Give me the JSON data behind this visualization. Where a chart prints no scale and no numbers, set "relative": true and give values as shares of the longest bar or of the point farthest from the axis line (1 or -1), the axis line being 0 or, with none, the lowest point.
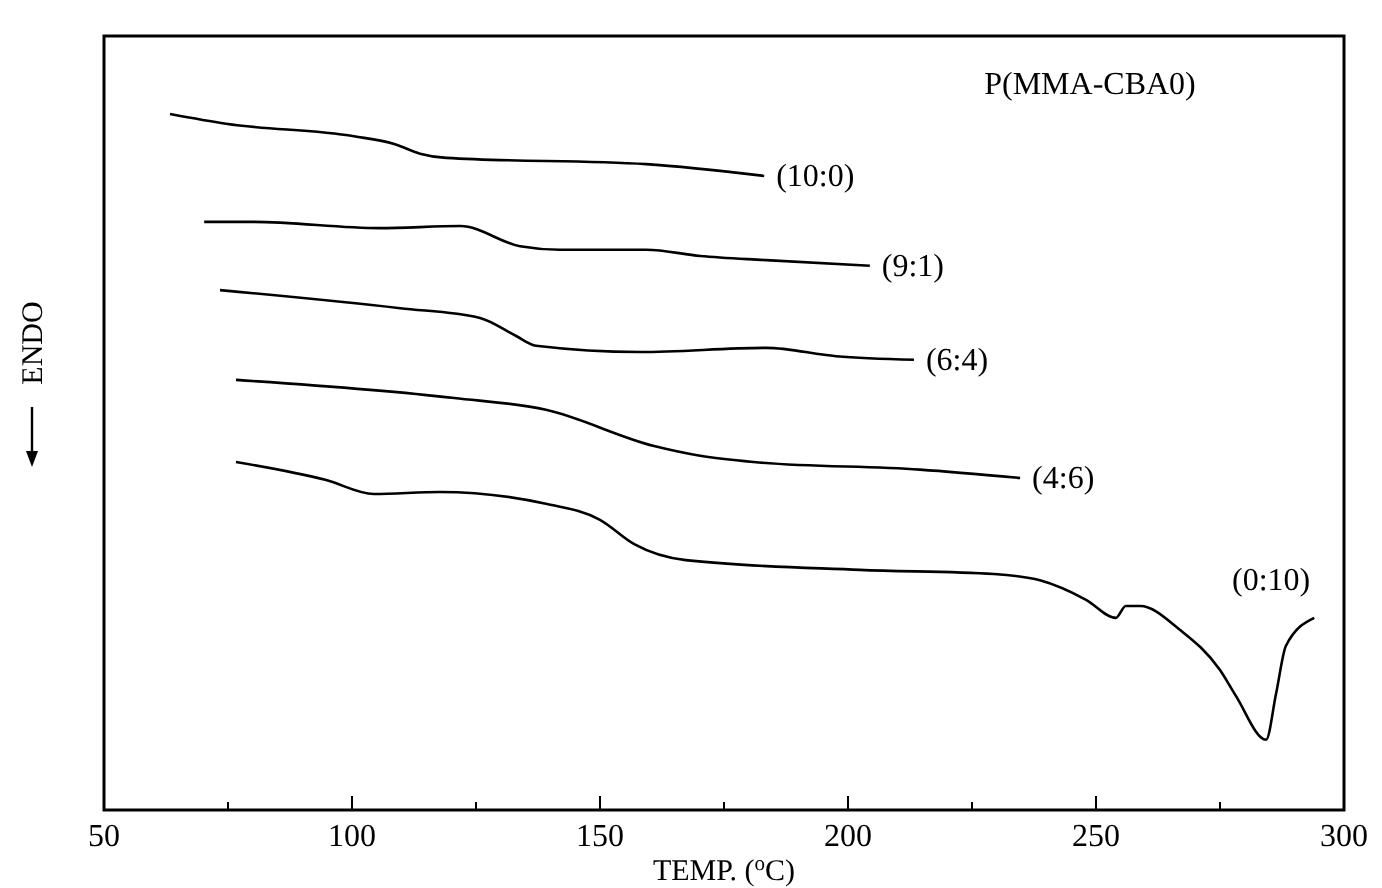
{
  "chart_data": {
    "type": "line",
    "relative": true,
    "xlabel": "TEMP. ($^{o}$C)",
    "ylabel": "ENDO",
    "legend_title": "P(MMA-CBA0)",
    "xlim": [
      50,
      300
    ],
    "xticks": [
      50,
      {
        "value": 75,
        "label": null
      },
      100,
      {
        "value": 125,
        "label": null
      },
      150,
      {
        "value": 175,
        "label": null
      },
      200,
      {
        "value": 225,
        "label": null
      },
      250,
      {
        "value": 275,
        "label": null
      },
      300
    ],
    "line_style": "solid",
    "marker": "none",
    "series": [
      {
        "name": "(10:0)",
        "color": "#000000",
        "x": [
          63.3,
          74.6,
          100.4,
          108.5,
          113.7,
          119.0,
          159.3,
          183.1
        ],
        "values": [
          1.0,
          0.986,
          0.968,
          0.957,
          0.943,
          0.937,
          0.928,
          0.911
        ]
      },
      {
        "name": "(9:1)",
        "color": "#000000",
        "x": [
          70.2,
          80.2,
          105.6,
          121.8,
          133.9,
          141.9,
          159.3,
          170.2,
          183.5,
          204.4
        ],
        "values": [
          0.845,
          0.845,
          0.836,
          0.839,
          0.81,
          0.805,
          0.805,
          0.796,
          0.79,
          0.782
        ]
      },
      {
        "name": "(6:4)",
        "color": "#000000",
        "x": [
          73.4,
          109.7,
          125.8,
          133.1,
          137.1,
          158.1,
          183.5,
          197.6,
          213.3
        ],
        "values": [
          0.747,
          0.721,
          0.707,
          0.681,
          0.667,
          0.658,
          0.664,
          0.652,
          0.647
        ]
      },
      {
        "name": "(4:6)",
        "color": "#000000",
        "x": [
          76.6,
          120.6,
          139.1,
          160.9,
          170.2,
          181.0,
          214.5,
          234.7
        ],
        "values": [
          0.618,
          0.592,
          0.575,
          0.523,
          0.509,
          0.5,
          0.489,
          0.477
        ]
      },
      {
        "name": "(0:10)",
        "color": "#000000",
        "x": [
          76.6,
          94.8,
          104.4,
          117.7,
          139.1,
          150.0,
          156.9,
          167.3,
          202.4,
          229.4,
          238.7,
          248.0,
          254.0,
          256.0,
          258.9,
          266.9,
          275.0,
          278.2,
          284.3,
          286.3,
          288.3,
          294.0
        ],
        "values": [
          0.5,
          0.474,
          0.454,
          0.457,
          0.44,
          0.417,
          0.382,
          0.359,
          0.345,
          0.339,
          0.33,
          0.302,
          0.276,
          0.293,
          0.293,
          0.259,
          0.201,
          0.164,
          0.101,
          0.167,
          0.236,
          0.276
        ]
      }
    ]
  }
}
